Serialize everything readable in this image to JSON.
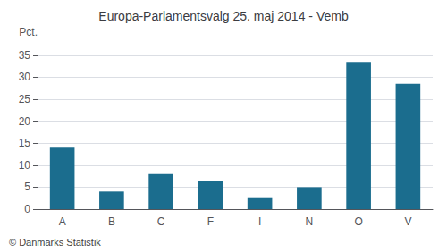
{
  "chart_data": {
    "type": "bar",
    "title": "Europa-Parlamentsvalg 25. maj 2014 - Vemb",
    "categories": [
      "A",
      "B",
      "C",
      "F",
      "I",
      "N",
      "O",
      "V"
    ],
    "values": [
      14.0,
      4.0,
      8.0,
      6.5,
      2.5,
      5.0,
      33.5,
      28.5
    ],
    "color": "#1b6d8e",
    "ylabel": "Pct.",
    "ylim": [
      0,
      37
    ],
    "yticks": [
      0,
      5,
      10,
      15,
      20,
      25,
      30,
      35
    ],
    "grid": true,
    "annotations": [
      "© Danmarks Statistik"
    ]
  }
}
